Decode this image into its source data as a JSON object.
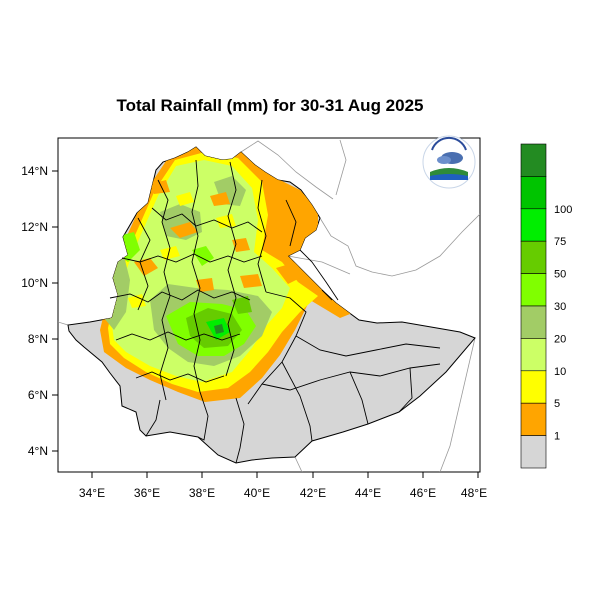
{
  "title": "Total Rainfall (mm) for 30-31 Aug 2025",
  "map": {
    "lon_ticks": [
      "34°E",
      "36°E",
      "38°E",
      "40°E",
      "42°E",
      "44°E",
      "46°E",
      "48°E"
    ],
    "lat_ticks": [
      "14°N",
      "12°N",
      "10°N",
      "8°N",
      "6°N",
      "4°N"
    ],
    "lon_range": [
      32.8,
      48.2
    ],
    "lat_range": [
      3.2,
      15.0
    ],
    "background_color": "#d6d6d6",
    "logo_icon": "ethiopian-meteorology-institute-logo"
  },
  "legend": {
    "levels": [
      {
        "label": "",
        "color": "#238b22"
      },
      {
        "label": "100",
        "color": "#00c400"
      },
      {
        "label": "75",
        "color": "#00ee00"
      },
      {
        "label": "50",
        "color": "#66cc00"
      },
      {
        "label": "30",
        "color": "#80ff00"
      },
      {
        "label": "20",
        "color": "#a2cc66"
      },
      {
        "label": "10",
        "color": "#ccff66"
      },
      {
        "label": "5",
        "color": "#ffff00"
      },
      {
        "label": "1",
        "color": "#ffa500"
      },
      {
        "label": "",
        "color": "#d6d6d6"
      }
    ]
  }
}
